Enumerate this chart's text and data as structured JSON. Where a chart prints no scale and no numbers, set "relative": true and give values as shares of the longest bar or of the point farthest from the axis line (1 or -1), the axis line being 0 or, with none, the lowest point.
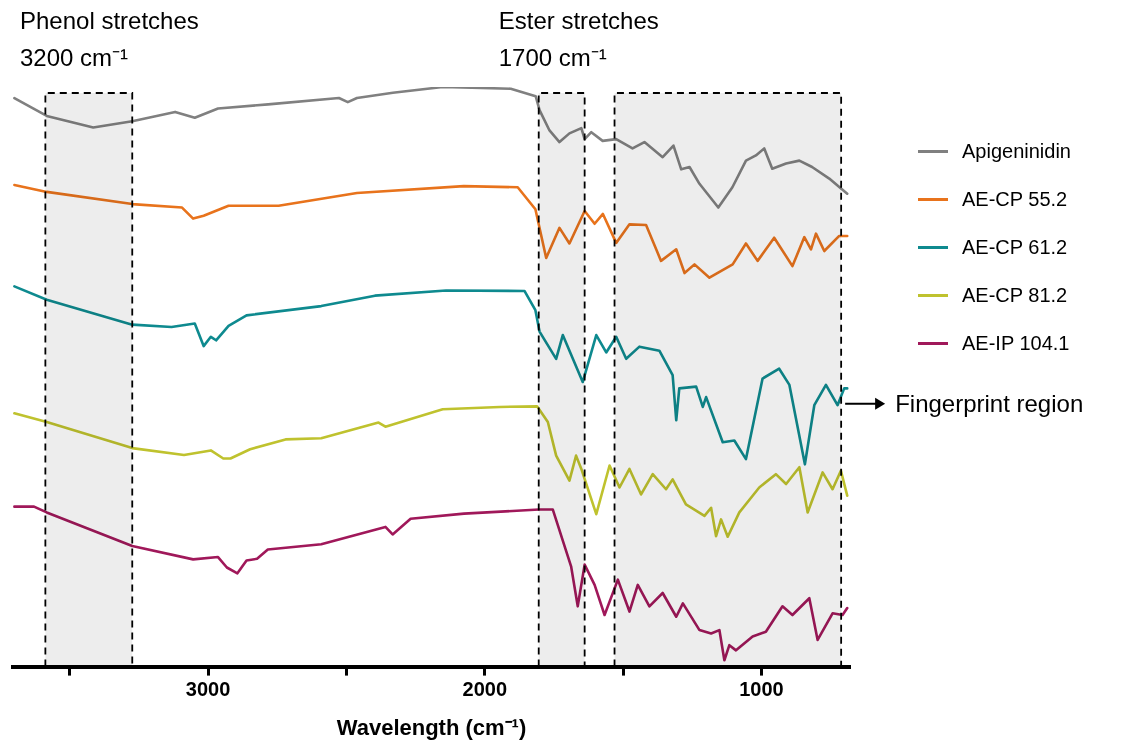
{
  "chart_data": {
    "type": "line",
    "xlabel": "Wavelength (cm⁻¹)",
    "xlim": [
      3705,
      680
    ],
    "xticks": [
      {
        "value": 3500,
        "label": null
      },
      3000,
      {
        "value": 2500,
        "label": null
      },
      2000,
      {
        "value": 1500,
        "label": null
      },
      1000
    ],
    "relative": true,
    "legend": "right",
    "marker": "none",
    "line_style": "solid",
    "grid": false,
    "series": [
      {
        "name": "Apigeninidin",
        "color": "#808080",
        "x": [
          3700,
          3583,
          3415,
          3274,
          3119,
          3048,
          2964,
          2783,
          2527,
          2495,
          2462,
          2332,
          2152,
          1906,
          1816,
          1802,
          1766,
          1730,
          1694,
          1651,
          1639,
          1615,
          1574,
          1525,
          1466,
          1423,
          1357,
          1318,
          1290,
          1260,
          1224,
          1156,
          1105,
          1056,
          1020,
          990,
          961,
          911,
          863,
          817,
          755,
          690
        ],
        "values": [
          0.981,
          0.95,
          0.93,
          0.941,
          0.957,
          0.947,
          0.963,
          0.97,
          0.981,
          0.974,
          0.981,
          0.99,
          1.0,
          0.997,
          0.984,
          0.96,
          0.925,
          0.905,
          0.92,
          0.929,
          0.91,
          0.922,
          0.907,
          0.91,
          0.894,
          0.905,
          0.879,
          0.899,
          0.858,
          0.862,
          0.833,
          0.792,
          0.827,
          0.873,
          0.882,
          0.894,
          0.859,
          0.868,
          0.873,
          0.862,
          0.842,
          0.816
        ]
      },
      {
        "name": "AE-CP 55.2",
        "color": "#e8731c",
        "x": [
          3700,
          3583,
          3274,
          3094,
          3054,
          3016,
          2926,
          2745,
          2462,
          2076,
          1881,
          1817,
          1778,
          1730,
          1694,
          1639,
          1603,
          1573,
          1525,
          1477,
          1417,
          1363,
          1308,
          1278,
          1242,
          1188,
          1104,
          1056,
          1014,
          954,
          888,
          845,
          821,
          803,
          773,
          719,
          690
        ],
        "values": [
          0.831,
          0.819,
          0.798,
          0.792,
          0.773,
          0.778,
          0.795,
          0.795,
          0.817,
          0.829,
          0.827,
          0.789,
          0.705,
          0.757,
          0.73,
          0.786,
          0.764,
          0.781,
          0.731,
          0.763,
          0.762,
          0.7,
          0.72,
          0.679,
          0.694,
          0.671,
          0.694,
          0.73,
          0.7,
          0.74,
          0.691,
          0.741,
          0.72,
          0.747,
          0.717,
          0.743,
          0.743
        ]
      },
      {
        "name": "AE-CP 61.2",
        "color": "#0e8a8f",
        "x": [
          3700,
          3583,
          3274,
          3132,
          3048,
          3016,
          2990,
          2971,
          2926,
          2861,
          2591,
          2397,
          2140,
          1856,
          1817,
          1802,
          1742,
          1718,
          1646,
          1597,
          1561,
          1525,
          1489,
          1441,
          1369,
          1321,
          1308,
          1297,
          1236,
          1212,
          1200,
          1140,
          1098,
          1056,
          996,
          936,
          899,
          843,
          809,
          767,
          725,
          701,
          690
        ],
        "values": [
          0.656,
          0.633,
          0.59,
          0.586,
          0.592,
          0.553,
          0.569,
          0.563,
          0.588,
          0.606,
          0.622,
          0.64,
          0.649,
          0.648,
          0.615,
          0.578,
          0.531,
          0.572,
          0.491,
          0.572,
          0.542,
          0.569,
          0.531,
          0.552,
          0.545,
          0.503,
          0.425,
          0.48,
          0.483,
          0.448,
          0.465,
          0.387,
          0.39,
          0.358,
          0.497,
          0.514,
          0.486,
          0.349,
          0.451,
          0.486,
          0.451,
          0.48,
          0.48
        ]
      },
      {
        "name": "AE-CP 81.2",
        "color": "#bfc22e",
        "x": [
          3700,
          3583,
          3274,
          3087,
          2990,
          2945,
          2919,
          2848,
          2720,
          2591,
          2384,
          2359,
          2152,
          1946,
          1811,
          1772,
          1742,
          1694,
          1670,
          1651,
          1597,
          1549,
          1513,
          1477,
          1435,
          1393,
          1345,
          1321,
          1273,
          1206,
          1182,
          1164,
          1146,
          1122,
          1080,
          1008,
          948,
          911,
          863,
          833,
          779,
          743,
          713,
          690
        ],
        "values": [
          0.437,
          0.422,
          0.377,
          0.365,
          0.373,
          0.359,
          0.359,
          0.375,
          0.392,
          0.394,
          0.421,
          0.414,
          0.444,
          0.448,
          0.449,
          0.422,
          0.364,
          0.321,
          0.364,
          0.341,
          0.263,
          0.347,
          0.309,
          0.341,
          0.297,
          0.332,
          0.306,
          0.323,
          0.28,
          0.26,
          0.274,
          0.225,
          0.254,
          0.224,
          0.266,
          0.309,
          0.332,
          0.315,
          0.344,
          0.266,
          0.335,
          0.306,
          0.338,
          0.295
        ]
      },
      {
        "name": "AE-IP 104.1",
        "color": "#a0185a",
        "x": [
          3700,
          3629,
          3583,
          3274,
          3054,
          2964,
          2932,
          2894,
          2861,
          2823,
          2784,
          2591,
          2359,
          2333,
          2268,
          2075,
          1804,
          1754,
          1688,
          1664,
          1639,
          1603,
          1567,
          1519,
          1477,
          1447,
          1405,
          1357,
          1308,
          1284,
          1224,
          1182,
          1152,
          1134,
          1116,
          1092,
          1032,
          984,
          924,
          888,
          827,
          797,
          743,
          707,
          690
        ],
        "values": [
          0.276,
          0.276,
          0.266,
          0.208,
          0.185,
          0.189,
          0.171,
          0.161,
          0.183,
          0.186,
          0.202,
          0.211,
          0.241,
          0.228,
          0.255,
          0.264,
          0.271,
          0.271,
          0.173,
          0.104,
          0.176,
          0.141,
          0.089,
          0.15,
          0.095,
          0.141,
          0.104,
          0.127,
          0.086,
          0.109,
          0.063,
          0.057,
          0.063,
          0.011,
          0.037,
          0.028,
          0.052,
          0.06,
          0.104,
          0.089,
          0.118,
          0.046,
          0.092,
          0.089,
          0.101
        ]
      }
    ],
    "bands": [
      {
        "axis": "x",
        "from": 3588,
        "to": 3274,
        "label": "Phenol stretches\n3200 cm⁻¹",
        "color": "#000000"
      },
      {
        "axis": "x",
        "from": 1805,
        "to": 1639,
        "label": "Ester stretches\n1700 cm⁻¹",
        "color": "#000000"
      },
      {
        "axis": "x",
        "from": 1531,
        "to": 712,
        "label": "Fingerprint region",
        "color": "#000000"
      }
    ]
  }
}
